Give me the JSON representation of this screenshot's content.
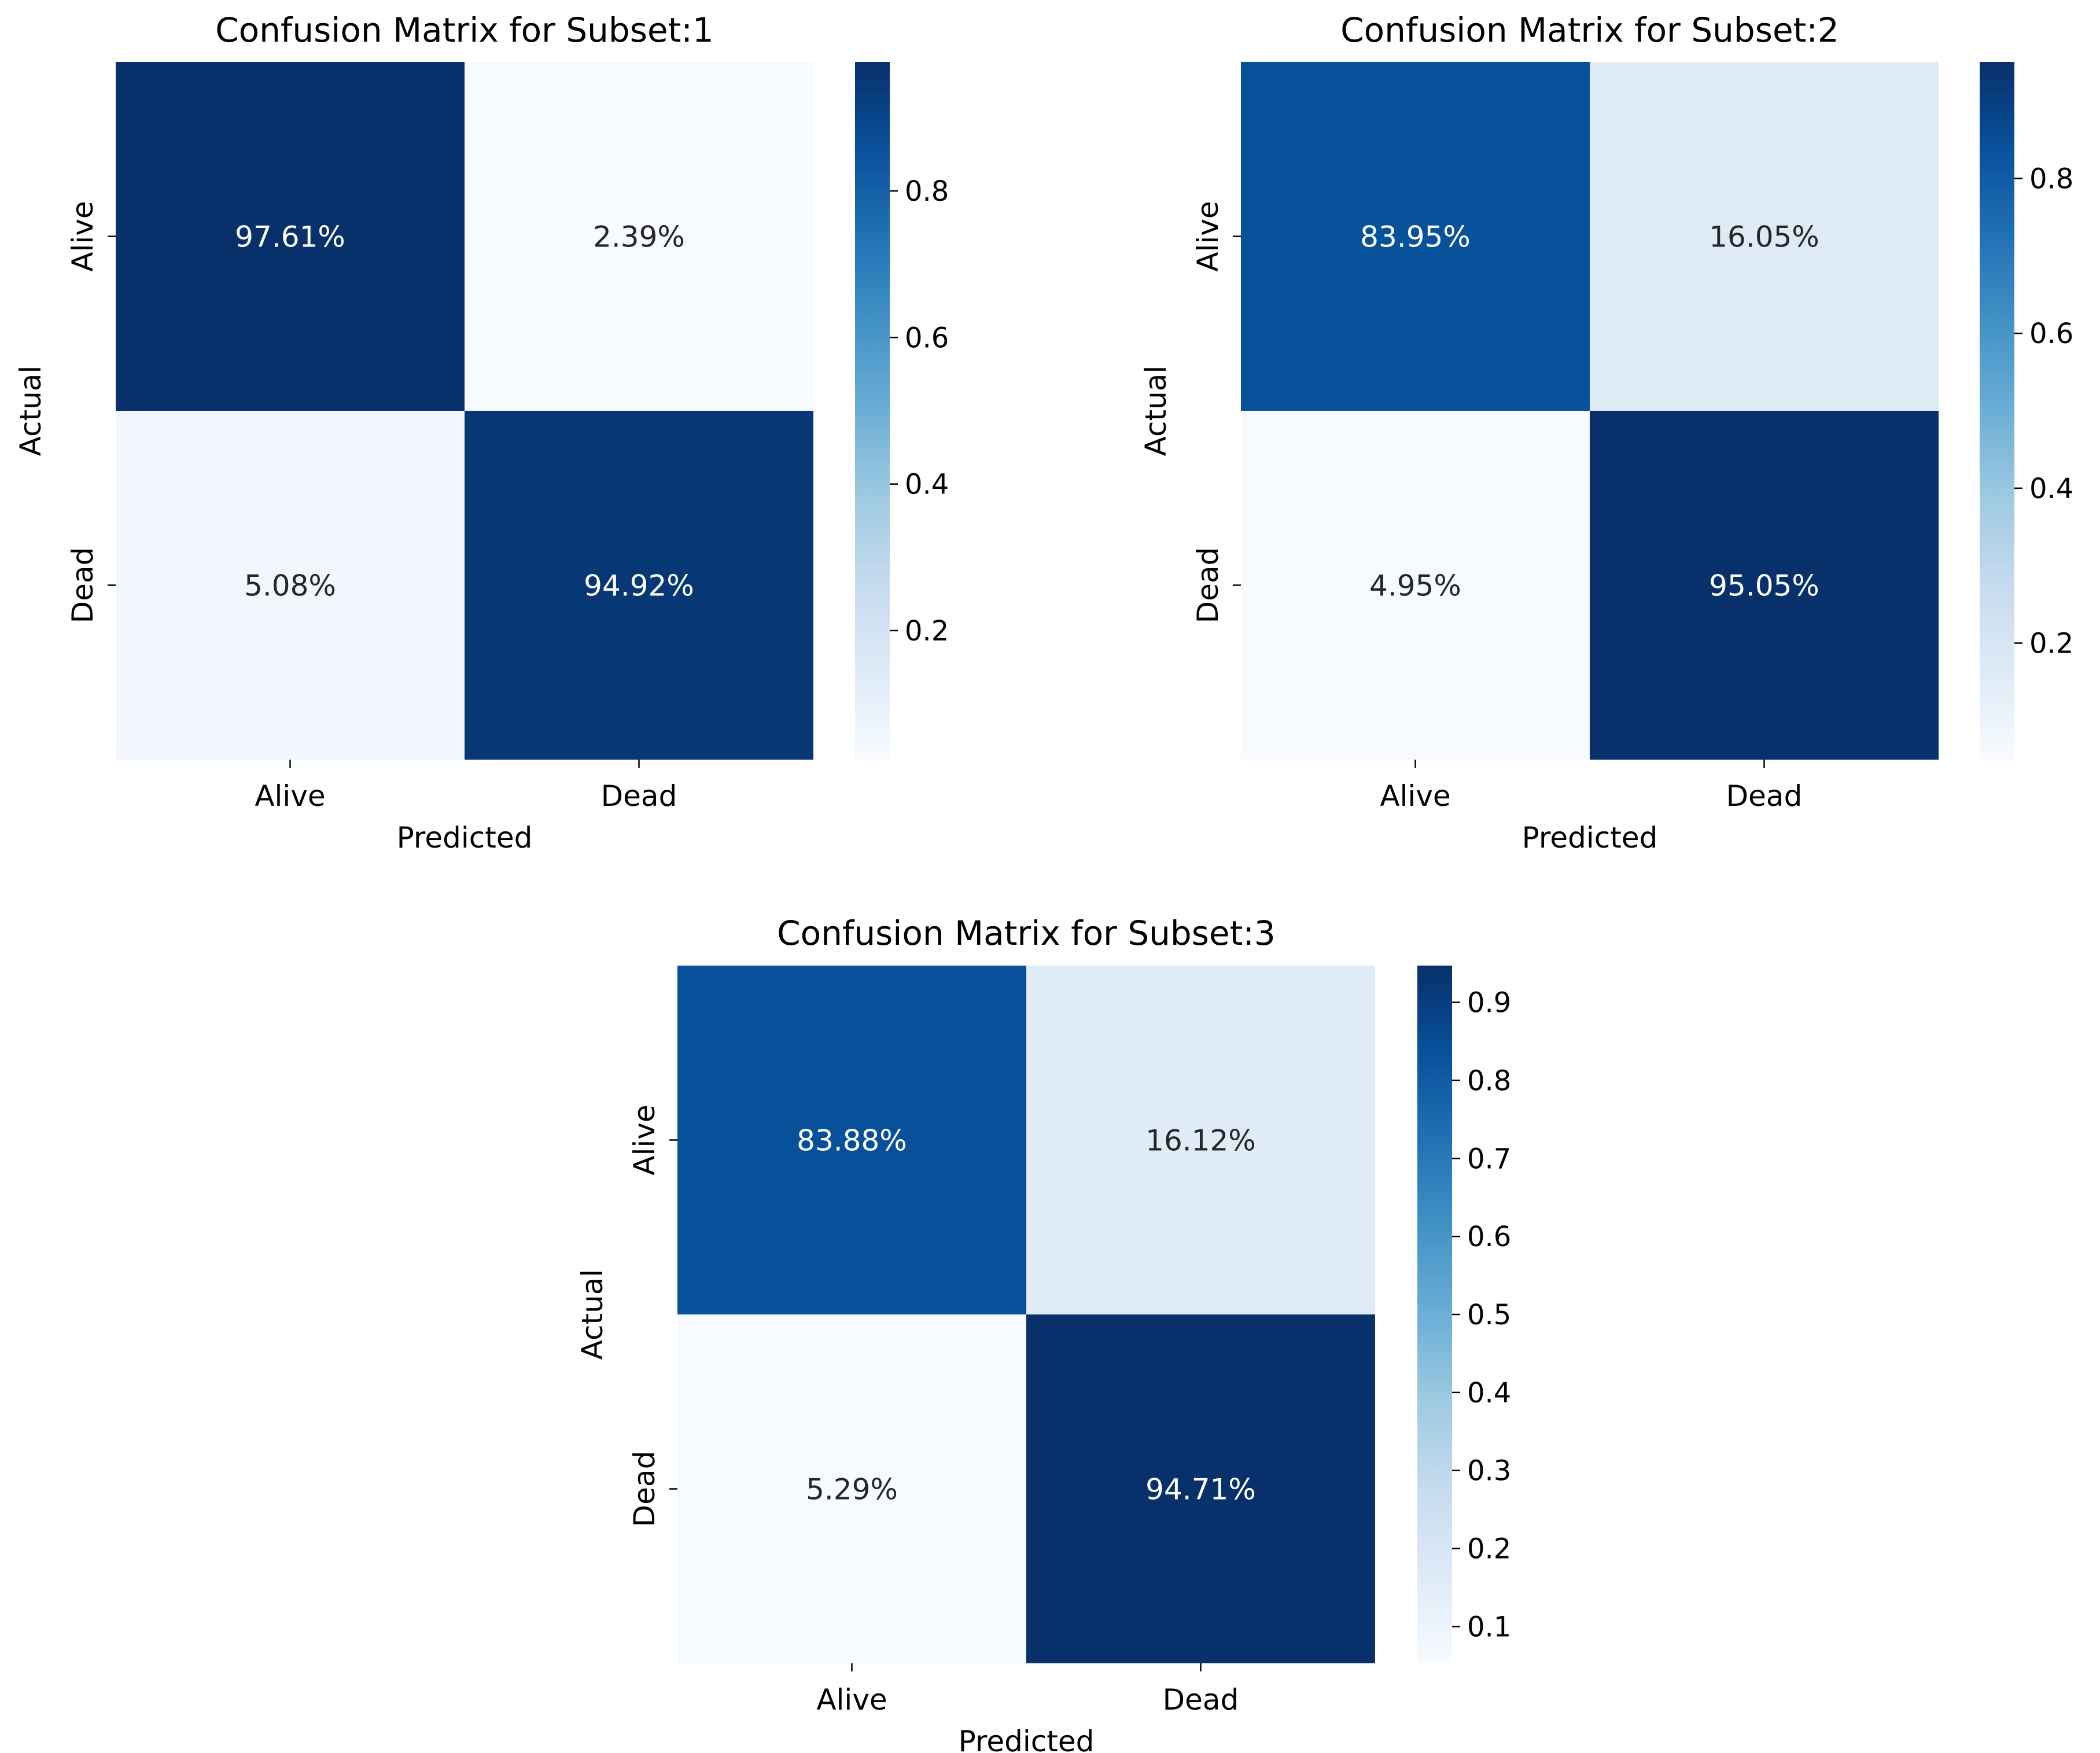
{
  "chart_data": [
    {
      "type": "heatmap",
      "title": "Confusion Matrix for Subset:1",
      "xlabel": "Predicted",
      "ylabel": "Actual",
      "x_categories": [
        "Alive",
        "Dead"
      ],
      "y_categories": [
        "Alive",
        "Dead"
      ],
      "values": [
        [
          0.9761,
          0.0239
        ],
        [
          0.0508,
          0.9492
        ]
      ],
      "cell_labels": [
        [
          "97.61%",
          "2.39%"
        ],
        [
          "5.08%",
          "94.92%"
        ]
      ],
      "colorbar": {
        "vmin": 0.0239,
        "vmax": 0.9761,
        "ticks": [
          0.2,
          0.4,
          0.6,
          0.8
        ],
        "tick_labels": [
          "0.2",
          "0.4",
          "0.6",
          "0.8"
        ]
      }
    },
    {
      "type": "heatmap",
      "title": "Confusion Matrix for Subset:2",
      "xlabel": "Predicted",
      "ylabel": "Actual",
      "x_categories": [
        "Alive",
        "Dead"
      ],
      "y_categories": [
        "Alive",
        "Dead"
      ],
      "values": [
        [
          0.8395,
          0.1605
        ],
        [
          0.0495,
          0.9505
        ]
      ],
      "cell_labels": [
        [
          "83.95%",
          "16.05%"
        ],
        [
          "4.95%",
          "95.05%"
        ]
      ],
      "colorbar": {
        "vmin": 0.0495,
        "vmax": 0.9505,
        "ticks": [
          0.2,
          0.4,
          0.6,
          0.8
        ],
        "tick_labels": [
          "0.2",
          "0.4",
          "0.6",
          "0.8"
        ]
      }
    },
    {
      "type": "heatmap",
      "title": "Confusion Matrix for Subset:3",
      "xlabel": "Predicted",
      "ylabel": "Actual",
      "x_categories": [
        "Alive",
        "Dead"
      ],
      "y_categories": [
        "Alive",
        "Dead"
      ],
      "values": [
        [
          0.8388,
          0.1612
        ],
        [
          0.0529,
          0.9471
        ]
      ],
      "cell_labels": [
        [
          "83.88%",
          "16.12%"
        ],
        [
          "5.29%",
          "94.71%"
        ]
      ],
      "colorbar": {
        "vmin": 0.0529,
        "vmax": 0.9471,
        "ticks": [
          0.1,
          0.2,
          0.3,
          0.4,
          0.5,
          0.6,
          0.7,
          0.8,
          0.9
        ],
        "tick_labels": [
          "0.1",
          "0.2",
          "0.3",
          "0.4",
          "0.5",
          "0.6",
          "0.7",
          "0.8",
          "0.9"
        ]
      }
    }
  ]
}
